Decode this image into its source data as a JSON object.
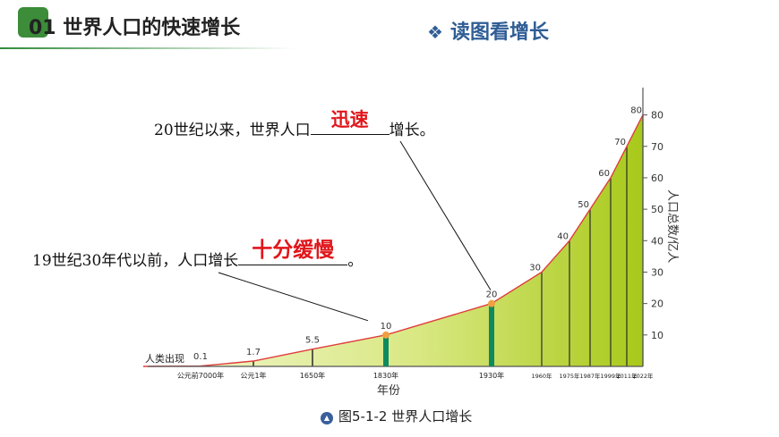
{
  "header": {
    "title": "01 世界人口的快速增长",
    "section_label": "读图看增长",
    "section_icon": "diamond-cluster-icon"
  },
  "notes": [
    {
      "prefix": "20世纪以来，世界人口",
      "answer": "迅速",
      "suffix": "增长。"
    },
    {
      "prefix": "19世纪30年代以前，人口增长",
      "answer": "十分缓慢",
      "suffix": "。"
    }
  ],
  "caption": {
    "icon": "triangle-icon",
    "text": "图5-1-2 世界人口增长"
  },
  "colors": {
    "accent_green": "#3c8c3a",
    "section_blue": "#2f5d95",
    "answer_red": "#e0161b",
    "curve": "#e03c3c",
    "fill_light": "#f3f7d2",
    "fill_dark": "#a8c91a",
    "marker_bar": "#0f8a5f",
    "marker_dot": "#f0a040"
  },
  "chart_data": {
    "type": "area",
    "ylabel": "人口总数/亿人",
    "xlabel": "年份",
    "ylim": [
      0,
      85
    ],
    "yticks": [
      "10",
      "20",
      "30",
      "40",
      "50",
      "60",
      "70",
      "80"
    ],
    "start_label": "人类出现",
    "points": [
      {
        "year": "公元前7000年",
        "value": 0.1,
        "label": "0.1"
      },
      {
        "year": "公元1年",
        "value": 1.7,
        "label": "1.7"
      },
      {
        "year": "1650年",
        "value": 5.5,
        "label": "5.5"
      },
      {
        "year": "1830年",
        "value": 10,
        "label": "10"
      },
      {
        "year": "1930年",
        "value": 20,
        "label": "20"
      },
      {
        "year": "1960年",
        "value": 30,
        "label": "30"
      },
      {
        "year": "1975年",
        "value": 40,
        "label": "40"
      },
      {
        "year": "1987年",
        "value": 50,
        "label": "50"
      },
      {
        "year": "1999年",
        "value": 60,
        "label": "60"
      },
      {
        "year": "2011年",
        "value": 70,
        "label": "70"
      },
      {
        "year": "2022年",
        "value": 80,
        "label": "80"
      }
    ],
    "highlighted_years": [
      "1830年",
      "1930年"
    ]
  }
}
